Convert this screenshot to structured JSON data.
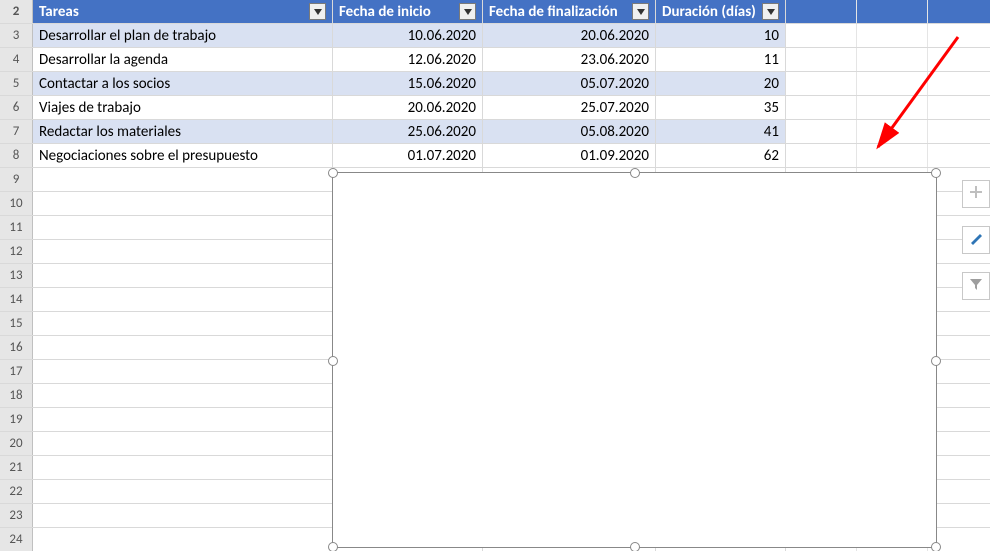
{
  "header": {
    "row_num": "2",
    "tasks": "Tareas",
    "start": "Fecha de inicio",
    "end": "Fecha de finalización",
    "duration": "Duración (días)",
    "bg_color": "#4472c4",
    "text_color": "#ffffff"
  },
  "band_color": "#d9e1f2",
  "rows": [
    {
      "n": "3",
      "task": "Desarrollar el plan de trabajo",
      "start": "10.06.2020",
      "end": "20.06.2020",
      "dur": "10",
      "band": true
    },
    {
      "n": "4",
      "task": "Desarrollar la agenda",
      "start": "12.06.2020",
      "end": "23.06.2020",
      "dur": "11",
      "band": false
    },
    {
      "n": "5",
      "task": "Contactar a los socios",
      "start": "15.06.2020",
      "end": "05.07.2020",
      "dur": "20",
      "band": true
    },
    {
      "n": "6",
      "task": "Viajes de trabajo",
      "start": "20.06.2020",
      "end": "25.07.2020",
      "dur": "35",
      "band": false
    },
    {
      "n": "7",
      "task": "Redactar los materiales",
      "start": "25.06.2020",
      "end": "05.08.2020",
      "dur": "41",
      "band": true
    },
    {
      "n": "8",
      "task": "Negociaciones sobre el presupuesto",
      "start": "01.07.2020",
      "end": "01.09.2020",
      "dur": "62",
      "band": false
    }
  ],
  "empty_rows": [
    "9",
    "10",
    "11",
    "12",
    "13",
    "14",
    "15",
    "16",
    "17",
    "18",
    "19",
    "20",
    "21",
    "22",
    "23",
    "24"
  ],
  "side_buttons": {
    "plus_color": "#bfbfbf",
    "brush_color": "#2e75b6",
    "filter_color": "#9e9e9e"
  },
  "arrow_color": "#ff0000"
}
